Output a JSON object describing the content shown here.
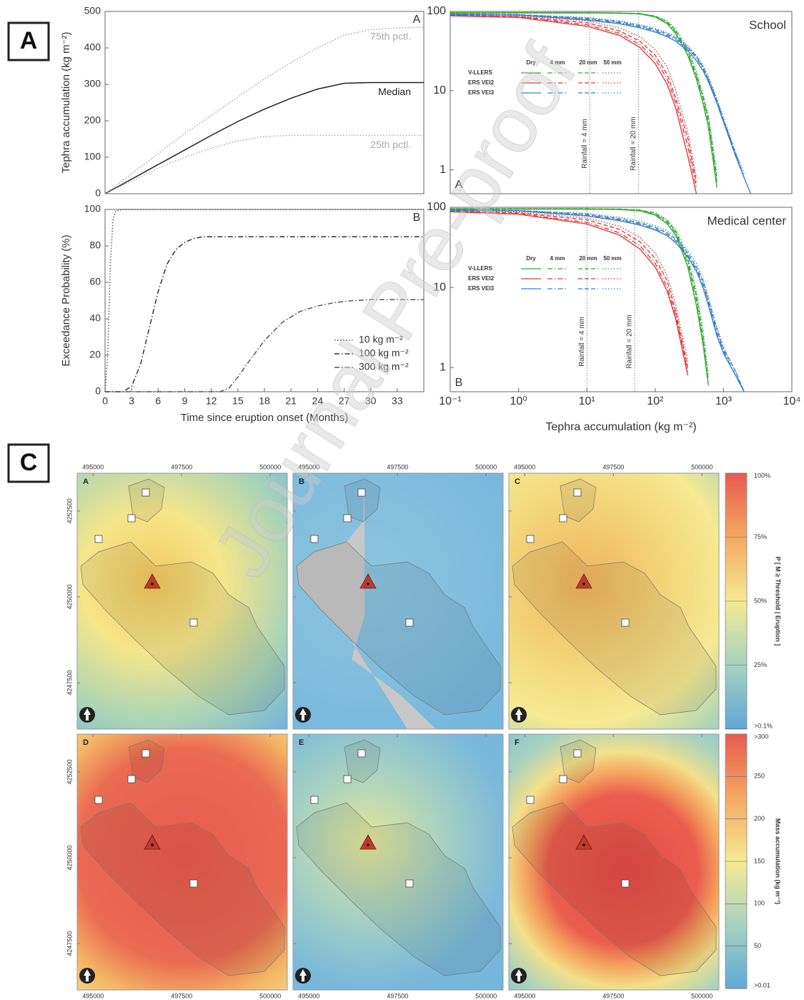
{
  "figure_labels": [
    "A",
    "C"
  ],
  "watermark": "Journal Pre-proof",
  "chart_data": [
    {
      "type": "line",
      "panel_label": "A",
      "ylabel": "Tephra accumulation (kg m⁻²)",
      "xlim": [
        0,
        36
      ],
      "ylim": [
        0,
        500
      ],
      "yticks": [
        0,
        100,
        200,
        300,
        400,
        500
      ],
      "x": [
        0,
        3,
        6,
        9,
        12,
        15,
        18,
        21,
        24,
        27,
        30,
        33,
        36
      ],
      "series": [
        {
          "name": "75th pctl.",
          "color": "#aaaaaa",
          "dash": "dotted",
          "values": [
            0,
            55,
            110,
            165,
            215,
            265,
            315,
            360,
            400,
            435,
            450,
            455,
            457
          ]
        },
        {
          "name": "Median",
          "color": "#222222",
          "dash": "solid",
          "values": [
            0,
            40,
            80,
            120,
            160,
            198,
            232,
            262,
            287,
            303,
            305,
            305,
            305
          ]
        },
        {
          "name": "25th pctl.",
          "color": "#aaaaaa",
          "dash": "dotted",
          "values": [
            0,
            35,
            70,
            100,
            125,
            145,
            157,
            160,
            160,
            160,
            160,
            160,
            160
          ]
        }
      ]
    },
    {
      "type": "line",
      "panel_label": "B",
      "ylabel": "Exceedance Probability (%)",
      "xlabel": "Time since eruption onset (Months)",
      "xlim": [
        0,
        36
      ],
      "xticks": [
        0,
        3,
        6,
        9,
        12,
        15,
        18,
        21,
        24,
        27,
        30,
        33
      ],
      "ylim": [
        0,
        100
      ],
      "yticks": [
        0,
        20,
        40,
        60,
        80,
        100
      ],
      "legend": "lower right",
      "series": [
        {
          "name": "10 kg m⁻²",
          "color": "#555555",
          "dash": "dotted",
          "x": [
            0,
            0.3,
            0.6,
            0.9,
            1.2,
            2,
            36
          ],
          "values": [
            0,
            20,
            70,
            95,
            99,
            100,
            100
          ]
        },
        {
          "name": "100 kg m⁻²",
          "color": "#333333",
          "dash": "dashdot",
          "x": [
            0,
            2,
            3,
            4,
            5,
            6,
            7,
            8,
            9,
            10,
            11,
            12,
            36
          ],
          "values": [
            0,
            0,
            3,
            15,
            35,
            55,
            70,
            78,
            82,
            84,
            85,
            85,
            85
          ]
        },
        {
          "name": "300 kg m⁻²",
          "color": "#555555",
          "dash": "dashdot",
          "x": [
            0,
            13,
            14,
            15,
            16,
            18,
            20,
            22,
            24,
            26,
            28,
            30,
            36
          ],
          "values": [
            0,
            0,
            2,
            8,
            15,
            28,
            38,
            44,
            47,
            49,
            50,
            50.5,
            50.5
          ]
        }
      ]
    },
    {
      "type": "line",
      "log_x": true,
      "log_y": true,
      "title": "School",
      "panel_label": "A",
      "xlim": [
        0.1,
        10000
      ],
      "ylim": [
        0.5,
        100
      ],
      "yticks": [
        1,
        10,
        100
      ],
      "rainfall": [
        "Dry",
        "4 mm",
        "20 mm",
        "50 mm"
      ],
      "rainfall_lines": [
        {
          "x": 11,
          "label": "Rainfall = 4 mm"
        },
        {
          "x": 57,
          "label": "Rainfall = 20 mm"
        }
      ],
      "x": [
        0.1,
        1,
        10,
        30,
        60,
        100,
        150,
        200,
        300,
        400,
        500,
        600,
        800,
        1000,
        1500,
        2000,
        2500
      ],
      "series": [
        {
          "name": "V-LLERS",
          "color": "#3aa83a",
          "values": [
            [
              96,
              96,
              96,
              95,
              93,
              85,
              70,
              52,
              28,
              14,
              7,
              3.5,
              0.6,
              null,
              null,
              null,
              null
            ],
            [
              96,
              96,
              96,
              95,
              93,
              86,
              72,
              55,
              30,
              15,
              8,
              4,
              0.7,
              null,
              null,
              null,
              null
            ],
            [
              96,
              96,
              96,
              95,
              94,
              87,
              74,
              57,
              32,
              16,
              8.5,
              4.5,
              0.8,
              null,
              null,
              null,
              null
            ],
            [
              97,
              97,
              97,
              96,
              94,
              88,
              76,
              60,
              35,
              18,
              9,
              5,
              0.9,
              null,
              null,
              null,
              null
            ]
          ]
        },
        {
          "name": "ERS VEI2",
          "color": "#e0393e",
          "values": [
            [
              88,
              84,
              65,
              50,
              35,
              22,
              12,
              6,
              1.5,
              0.5,
              null,
              null,
              null,
              null,
              null,
              null,
              null
            ],
            [
              89,
              85,
              68,
              53,
              38,
              25,
              14,
              7,
              2,
              0.6,
              null,
              null,
              null,
              null,
              null,
              null,
              null
            ],
            [
              90,
              86,
              72,
              57,
              42,
              28,
              16,
              8,
              2.5,
              0.7,
              null,
              null,
              null,
              null,
              null,
              null,
              null
            ],
            [
              91,
              88,
              76,
              62,
              48,
              33,
              20,
              10,
              3,
              0.8,
              null,
              null,
              null,
              null,
              null,
              null,
              null
            ]
          ]
        },
        {
          "name": "ERS VEI3",
          "color": "#3b7fc4",
          "values": [
            [
              92,
              90,
              78,
              70,
              62,
              55,
              48,
              42,
              32,
              24,
              18,
              13,
              7,
              4,
              1.5,
              0.8,
              0.5
            ],
            [
              92,
              90,
              80,
              72,
              64,
              57,
              50,
              44,
              34,
              26,
              19,
              14,
              7.5,
              4.2,
              1.6,
              0.8,
              null
            ],
            [
              93,
              91,
              82,
              74,
              66,
              59,
              52,
              46,
              35,
              27,
              20,
              14,
              7.5,
              4.3,
              1.6,
              0.8,
              null
            ],
            [
              93,
              91,
              84,
              76,
              68,
              61,
              54,
              48,
              37,
              28,
              21,
              15,
              8,
              4.5,
              1.7,
              0.9,
              null
            ]
          ]
        }
      ]
    },
    {
      "type": "line",
      "log_x": true,
      "log_y": true,
      "title": "Medical center",
      "panel_label": "B",
      "xlabel": "Tephra accumulation (kg m⁻²)",
      "xlim": [
        0.1,
        10000
      ],
      "xticks": [
        {
          "value": 0.1,
          "label": "10⁻¹"
        },
        {
          "value": 1,
          "label": "10⁰"
        },
        {
          "value": 10,
          "label": "10¹"
        },
        {
          "value": 100,
          "label": "10²"
        },
        {
          "value": 1000,
          "label": "10³"
        },
        {
          "value": 10000,
          "label": "10⁴"
        }
      ],
      "ylim": [
        0.5,
        100
      ],
      "yticks": [
        1,
        10,
        100
      ],
      "rainfall": [
        "Dry",
        "4 mm",
        "20 mm",
        "50 mm"
      ],
      "rainfall_lines": [
        {
          "x": 10,
          "label": "Rainfall = 4 mm"
        },
        {
          "x": 50,
          "label": "Rainfall = 20 mm"
        }
      ],
      "x": [
        0.1,
        1,
        10,
        30,
        60,
        100,
        150,
        200,
        300,
        400,
        500,
        600,
        800,
        1000,
        1500,
        2000,
        2500
      ],
      "series": [
        {
          "name": "V-LLERS",
          "color": "#3aa83a",
          "values": [
            [
              95,
              95,
              95,
              94,
              90,
              80,
              62,
              45,
              18,
              6,
              2,
              0.6,
              null,
              null,
              null,
              null,
              null
            ],
            [
              95,
              95,
              95,
              94,
              91,
              82,
              65,
              48,
              20,
              7,
              2.2,
              0.6,
              null,
              null,
              null,
              null,
              null
            ],
            [
              96,
              96,
              96,
              95,
              92,
              84,
              68,
              50,
              22,
              8,
              2.5,
              0.7,
              null,
              null,
              null,
              null,
              null
            ],
            [
              96,
              96,
              96,
              95,
              93,
              86,
              70,
              53,
              25,
              9,
              3,
              0.8,
              null,
              null,
              null,
              null,
              null
            ]
          ]
        },
        {
          "name": "ERS VEI2",
          "color": "#e0393e",
          "values": [
            [
              88,
              82,
              62,
              45,
              30,
              18,
              9,
              4,
              0.8,
              null,
              null,
              null,
              null,
              null,
              null,
              null,
              null
            ],
            [
              89,
              83,
              65,
              48,
              33,
              20,
              10,
              4.5,
              0.9,
              null,
              null,
              null,
              null,
              null,
              null,
              null,
              null
            ],
            [
              90,
              85,
              70,
              53,
              37,
              23,
              12,
              5,
              1,
              null,
              null,
              null,
              null,
              null,
              null,
              null,
              null
            ],
            [
              91,
              87,
              74,
              58,
              42,
              27,
              14,
              6,
              1.2,
              null,
              null,
              null,
              null,
              null,
              null,
              null,
              null
            ]
          ]
        },
        {
          "name": "ERS VEI3",
          "color": "#3b7fc4",
          "values": [
            [
              92,
              90,
              78,
              68,
              60,
              52,
              44,
              36,
              24,
              16,
              10,
              6,
              2.5,
              1.5,
              0.8,
              0.5,
              null
            ],
            [
              92,
              90,
              80,
              70,
              62,
              54,
              46,
              38,
              25,
              17,
              11,
              6.5,
              2.7,
              1.6,
              0.8,
              0.5,
              null
            ],
            [
              93,
              91,
              82,
              72,
              64,
              56,
              48,
              40,
              27,
              18,
              12,
              7,
              3,
              1.7,
              0.9,
              0.5,
              null
            ],
            [
              93,
              91,
              84,
              75,
              67,
              59,
              51,
              43,
              29,
              20,
              13,
              7.5,
              3.2,
              1.8,
              0.9,
              0.5,
              null
            ]
          ]
        }
      ]
    }
  ],
  "maps": {
    "panels": [
      "A",
      "B",
      "C",
      "D",
      "E",
      "F"
    ],
    "xlim": [
      494550,
      500480
    ],
    "xticks": [
      495000,
      497500,
      500000
    ],
    "ylim": [
      4246150,
      4253600
    ],
    "yticks": [
      4252500,
      4250000,
      4247500
    ]
  },
  "colorbars": [
    {
      "title": "P [ M ≥ Threshold | Eruption ]",
      "lim": [
        0,
        100
      ],
      "colors": [
        "#e85a4f",
        "#f4a862",
        "#f6ea92",
        "#a6d2c0",
        "#5fa8d8"
      ],
      "ticks": [
        {
          "value": 100,
          "label": "100%"
        },
        {
          "value": 75,
          "label": "75%"
        },
        {
          "value": 50,
          "label": "50%"
        },
        {
          "value": 25,
          "label": "25%"
        },
        {
          "value": 0.1,
          "label": ">0.1%"
        }
      ]
    },
    {
      "title": "Mass accumulation (kg m⁻²)",
      "lim": [
        0,
        300
      ],
      "colors": [
        "#e85a4f",
        "#f4a862",
        "#f6ea92",
        "#a6d2c0",
        "#5fa8d8"
      ],
      "ticks": [
        {
          "value": 300,
          "label": ">300"
        },
        250,
        200,
        150,
        100,
        50,
        {
          "value": 0.01,
          "label": ">0.01"
        }
      ]
    }
  ]
}
